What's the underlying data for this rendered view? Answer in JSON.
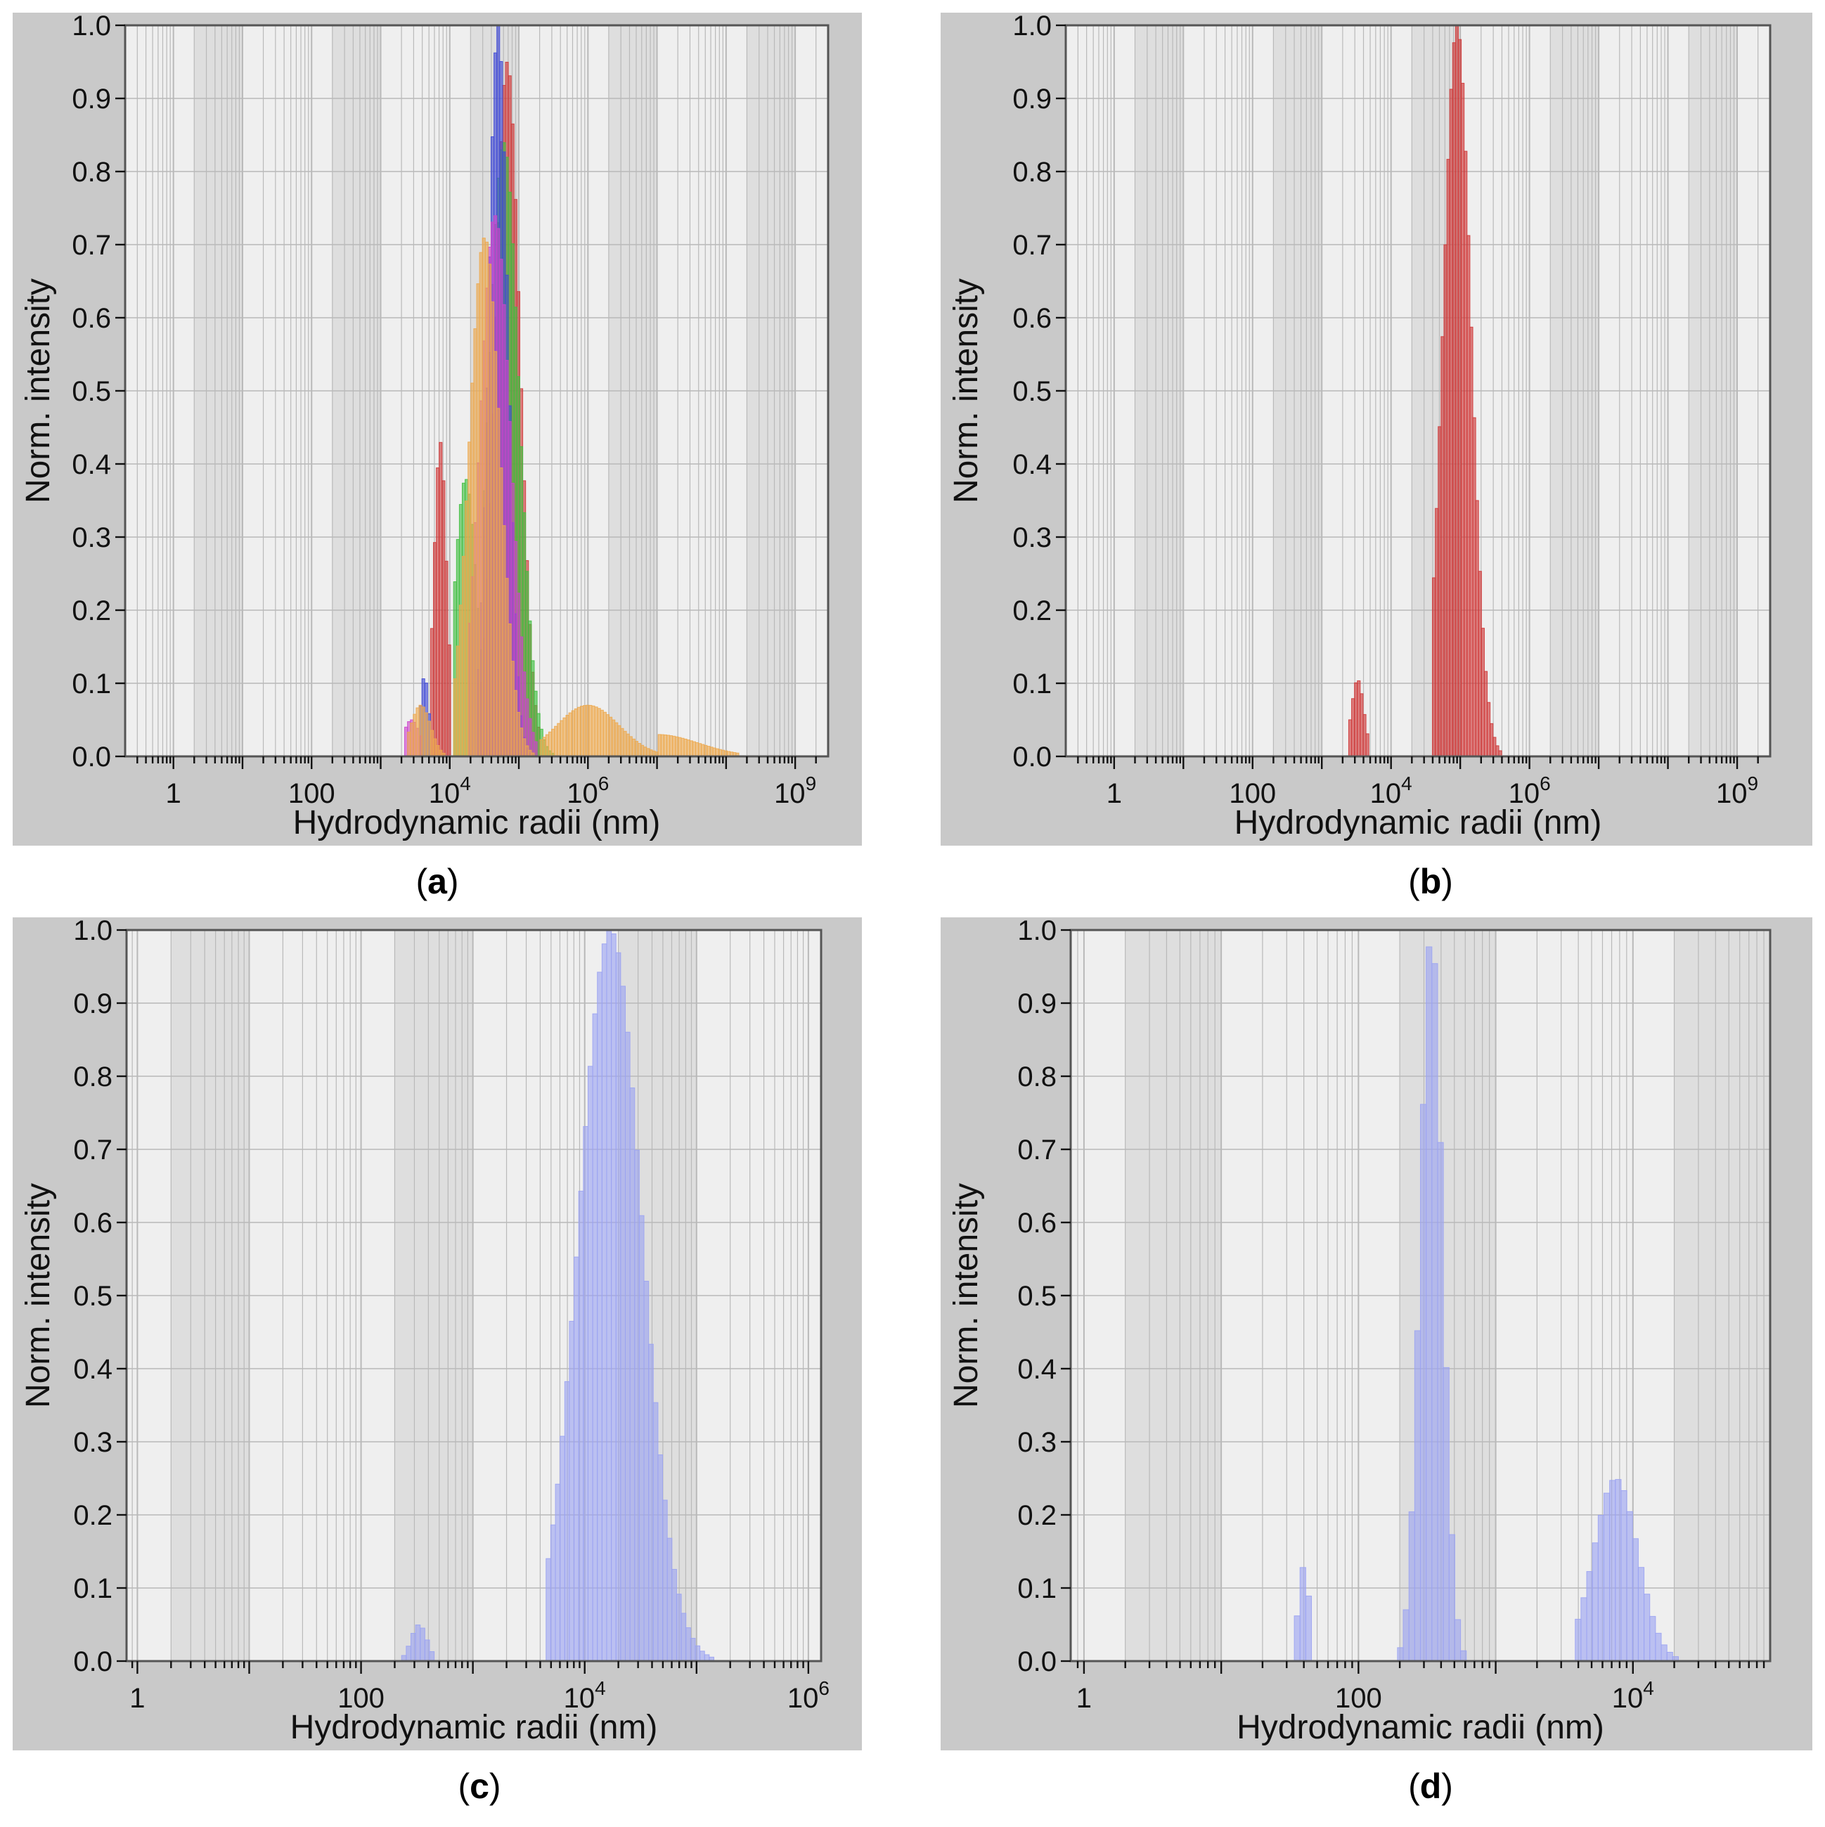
{
  "colors": {
    "panel_bg": "#c9c9c9",
    "plot_bg": "#efefef",
    "band_bg": "#dedede",
    "grid": "#b9b9b9",
    "axis": "#555555",
    "red": "#cf3636",
    "blue": "#3f49d6",
    "green": "#3fbf3f",
    "magenta": "#cc44cc",
    "orange": "#eda84c",
    "lavender": "#9ba3f2"
  },
  "chart_data": [
    {
      "id": "a",
      "type": "bar",
      "caption": "a",
      "xlabel": "Hydrodynamic radii (nm)",
      "ylabel": "Norm. intensity",
      "xscale": "log",
      "xlim": [
        0.2,
        3000000000
      ],
      "ylim": [
        0,
        1
      ],
      "grid": true,
      "xticks": [
        {
          "value": 1,
          "base": "1",
          "exp": ""
        },
        {
          "value": 100,
          "base": "100",
          "exp": ""
        },
        {
          "value": 10000,
          "base": "10",
          "exp": "4"
        },
        {
          "value": 1000000,
          "base": "10",
          "exp": "6"
        },
        {
          "value": 1000000000,
          "base": "10",
          "exp": "9"
        }
      ],
      "yticks": [
        "0.0",
        "0.1",
        "0.2",
        "0.3",
        "0.4",
        "0.5",
        "0.6",
        "0.7",
        "0.8",
        "0.9",
        "1.0"
      ],
      "series": [
        {
          "color_key": "red",
          "peaks": [
            {
              "center": 7300,
              "height": 0.43,
              "width": 0.09,
              "range": [
                5500,
                10000
              ]
            },
            {
              "center": 68000,
              "height": 0.95,
              "width": 0.18,
              "range": [
                28000,
                200000
              ]
            }
          ]
        },
        {
          "color_key": "green",
          "peaks": [
            {
              "center": 17000,
              "height": 0.38,
              "width": 0.16,
              "range": [
                11000,
                32000
              ]
            },
            {
              "center": 60000,
              "height": 0.84,
              "width": 0.22,
              "range": [
                30000,
                320000
              ]
            }
          ]
        },
        {
          "color_key": "blue",
          "peaks": [
            {
              "center": 4300,
              "height": 0.11,
              "width": 0.06,
              "range": [
                3500,
                5500
              ]
            },
            {
              "center": 50000,
              "height": 1.0,
              "width": 0.14,
              "range": [
                25000,
                160000
              ]
            }
          ]
        },
        {
          "color_key": "magenta",
          "peaks": [
            {
              "center": 2800,
              "height": 0.05,
              "width": 0.12,
              "range": [
                2200,
                3800
              ]
            },
            {
              "center": 45000,
              "height": 0.74,
              "width": 0.22,
              "range": [
                18000,
                190000
              ]
            }
          ]
        },
        {
          "color_key": "orange",
          "peaks": [
            {
              "center": 3800,
              "height": 0.07,
              "width": 0.14,
              "range": [
                2500,
                12000
              ]
            },
            {
              "center": 32000,
              "height": 0.71,
              "width": 0.22,
              "range": [
                11000,
                160000
              ]
            },
            {
              "center": 1000000,
              "height": 0.07,
              "width": 0.45,
              "range": [
                200000,
                10000000
              ]
            },
            {
              "center": 10000000,
              "height": 0.03,
              "width": 0.6,
              "range": [
                10000000,
                2200000000
              ]
            }
          ]
        }
      ]
    },
    {
      "id": "b",
      "type": "bar",
      "caption": "b",
      "xlabel": "Hydrodynamic radii (nm)",
      "ylabel": "Norm. intensity",
      "xscale": "log",
      "xlim": [
        0.2,
        3000000000
      ],
      "ylim": [
        0,
        1
      ],
      "grid": true,
      "xticks": [
        {
          "value": 1,
          "base": "1",
          "exp": ""
        },
        {
          "value": 100,
          "base": "100",
          "exp": ""
        },
        {
          "value": 10000,
          "base": "10",
          "exp": "4"
        },
        {
          "value": 1000000,
          "base": "10",
          "exp": "6"
        },
        {
          "value": 1000000000,
          "base": "10",
          "exp": "9"
        }
      ],
      "yticks": [
        "0.0",
        "0.1",
        "0.2",
        "0.3",
        "0.4",
        "0.5",
        "0.6",
        "0.7",
        "0.8",
        "0.9",
        "1.0"
      ],
      "series": [
        {
          "color_key": "red",
          "peaks": [
            {
              "center": 3300,
              "height": 0.105,
              "width": 0.09,
              "range": [
                2400,
                4700
              ]
            },
            {
              "center": 90000,
              "height": 1.0,
              "width": 0.2,
              "range": [
                38000,
                2000000
              ]
            }
          ]
        }
      ]
    },
    {
      "id": "c",
      "type": "bar",
      "caption": "c",
      "xlabel": "Hydrodynamic radii (nm)",
      "ylabel": "Norm. intensity",
      "xscale": "log",
      "xlim": [
        0.8,
        1300000
      ],
      "ylim": [
        0,
        1
      ],
      "grid": true,
      "xticks": [
        {
          "value": 1,
          "base": "1",
          "exp": ""
        },
        {
          "value": 100,
          "base": "100",
          "exp": ""
        },
        {
          "value": 10000,
          "base": "10",
          "exp": "4"
        },
        {
          "value": 1000000,
          "base": "10",
          "exp": "6"
        }
      ],
      "yticks": [
        "0.0",
        "0.1",
        "0.2",
        "0.3",
        "0.4",
        "0.5",
        "0.6",
        "0.7",
        "0.8",
        "0.9",
        "1.0"
      ],
      "series": [
        {
          "color_key": "lavender",
          "peaks": [
            {
              "center": 330,
              "height": 0.05,
              "width": 0.07,
              "range": [
                240,
                450
              ]
            },
            {
              "center": 17000,
              "height": 1.0,
              "width": 0.28,
              "range": [
                4500,
                160000
              ]
            }
          ]
        }
      ]
    },
    {
      "id": "d",
      "type": "bar",
      "caption": "d",
      "xlabel": "Hydrodynamic radii (nm)",
      "ylabel": "Norm. intensity",
      "xscale": "log",
      "xlim": [
        0.8,
        100000
      ],
      "ylim": [
        0,
        1
      ],
      "grid": true,
      "xticks": [
        {
          "value": 1,
          "base": "1",
          "exp": ""
        },
        {
          "value": 100,
          "base": "100",
          "exp": ""
        },
        {
          "value": 10000,
          "base": "10",
          "exp": "4"
        }
      ],
      "yticks": [
        "0.0",
        "0.1",
        "0.2",
        "0.3",
        "0.4",
        "0.5",
        "0.6",
        "0.7",
        "0.8",
        "0.9",
        "1.0"
      ],
      "series": [
        {
          "color_key": "lavender",
          "peaks": [
            {
              "center": 40,
              "height": 0.13,
              "width": 0.04,
              "range": [
                34,
                47
              ]
            },
            {
              "center": 340,
              "height": 1.0,
              "width": 0.08,
              "range": [
                200,
                650
              ]
            },
            {
              "center": 7500,
              "height": 0.25,
              "width": 0.16,
              "range": [
                3800,
                21000
              ]
            }
          ]
        }
      ]
    }
  ]
}
